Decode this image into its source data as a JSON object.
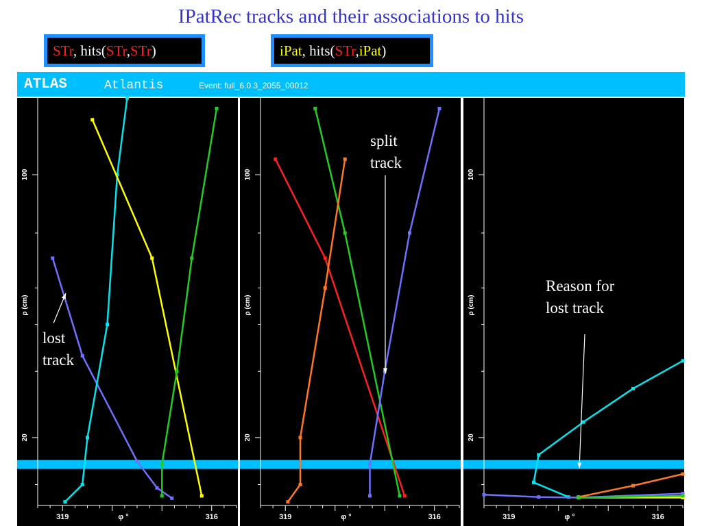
{
  "title": "IPatRec tracks and their associations to hits",
  "legend_left": {
    "a": "STr",
    "b": ", hits(",
    "c": "STr",
    "d": ",",
    "e": "STr",
    "f": ")"
  },
  "legend_right": {
    "a": "iPat",
    "b": ", hits(",
    "c": "STr",
    "d": ",",
    "e": "iPat",
    "f": ")"
  },
  "atlas": {
    "logo": "ATLAS",
    "app": "Atlantis",
    "event": "Event: full_6.0.3_2055_00012"
  },
  "annotations": {
    "lost1": "lost",
    "lost2": "track",
    "split1": "split",
    "split2": "track",
    "reason1": "Reason for",
    "reason2": "lost track"
  },
  "chart_data": [
    {
      "type": "line",
      "x_axis": {
        "label": "φ °",
        "ticks": [
          "319",
          "316"
        ],
        "range": [
          319.5,
          315.5
        ]
      },
      "y_axis": {
        "label": "ρ (cm)",
        "ticks": [
          "100",
          "20"
        ],
        "scale": "log"
      },
      "band_rho": 17,
      "series": [
        {
          "color": "#7070ff",
          "points": [
            [
              319.2,
              60
            ],
            [
              318.6,
              33
            ],
            [
              317.5,
              17.3
            ],
            [
              317.1,
              14.7
            ],
            [
              316.8,
              13.8
            ]
          ]
        },
        {
          "color": "#00e5ee",
          "points": [
            [
              318.95,
              13.5
            ],
            [
              318.6,
              15
            ],
            [
              318.5,
              20
            ],
            [
              318.1,
              40
            ],
            [
              317.9,
              100
            ],
            [
              317.7,
              160
            ]
          ]
        },
        {
          "color": "#ffff00",
          "points": [
            [
              318.4,
              140
            ],
            [
              317.2,
              60
            ],
            [
              316.2,
              14
            ]
          ]
        },
        {
          "color": "#22cc22",
          "points": [
            [
              317.0,
              14
            ],
            [
              317.0,
              17
            ],
            [
              316.7,
              30
            ],
            [
              316.4,
              60
            ],
            [
              315.9,
              150
            ]
          ]
        }
      ]
    },
    {
      "type": "line",
      "x_axis": {
        "label": "φ °",
        "ticks": [
          "319",
          "316"
        ],
        "range": [
          319.5,
          315.5
        ]
      },
      "y_axis": {
        "label": "ρ (cm)",
        "ticks": [
          "100",
          "20"
        ],
        "scale": "log"
      },
      "band_rho": 17,
      "series": [
        {
          "color": "#ff2020",
          "points": [
            [
              319.2,
              110
            ],
            [
              318.2,
              60
            ],
            [
              316.6,
              14
            ]
          ]
        },
        {
          "color": "#22cc22",
          "points": [
            [
              318.4,
              150
            ],
            [
              317.8,
              70
            ],
            [
              316.7,
              14
            ]
          ]
        },
        {
          "color": "#ff7722",
          "points": [
            [
              318.95,
              13.5
            ],
            [
              318.7,
              15
            ],
            [
              318.7,
              20
            ],
            [
              318.2,
              50
            ],
            [
              317.8,
              110
            ]
          ]
        },
        {
          "color": "#7070ff",
          "points": [
            [
              317.3,
              14
            ],
            [
              317.3,
              17
            ],
            [
              317.0,
              30
            ],
            [
              316.5,
              70
            ],
            [
              315.9,
              150
            ]
          ]
        }
      ]
    },
    {
      "type": "line",
      "x_axis": {
        "label": "φ °",
        "ticks": [
          "319",
          "316"
        ],
        "range": [
          319.5,
          315.5
        ]
      },
      "y_axis": {
        "label": "ρ (cm)",
        "ticks": [
          "100",
          "20"
        ],
        "scale": "log"
      },
      "band_rho": 17,
      "series": [
        {
          "color": "#00e5ee",
          "points": [
            [
              317.8,
              13.9
            ],
            [
              318.5,
              15.2
            ],
            [
              318.4,
              18
            ],
            [
              317.5,
              22
            ],
            [
              316.5,
              27
            ],
            [
              315.5,
              32
            ]
          ]
        },
        {
          "color": "#7070ff",
          "points": [
            [
              319.5,
              14.1
            ],
            [
              318.4,
              13.9
            ],
            [
              317.6,
              13.85
            ],
            [
              315.5,
              14.2
            ]
          ]
        },
        {
          "color": "#ff7722",
          "points": [
            [
              317.6,
              13.9
            ],
            [
              316.5,
              14.9
            ],
            [
              315.5,
              16
            ]
          ]
        },
        {
          "color": "#ffff00",
          "points": [
            [
              317.6,
              13.85
            ],
            [
              315.5,
              13.85
            ]
          ]
        },
        {
          "color": "#22cc22",
          "points": [
            [
              317.6,
              13.85
            ],
            [
              315.5,
              14.0
            ]
          ]
        }
      ]
    }
  ]
}
